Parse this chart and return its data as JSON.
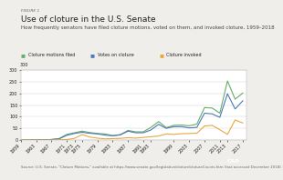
{
  "title": "Use of cloture in the U.S. Senate",
  "figure_label": "FIGURE 1",
  "subtitle": "How frequently senators have filed cloture motions, voted on them, and invoked cloture, 1959–2018",
  "source": "Source: U.S. Senate, \"Cloture Motions,\" available at https://www.senate.gov/legislative/cloture/clotureCounts.htm (last accessed December 2018).",
  "years": [
    1959,
    1961,
    1963,
    1965,
    1967,
    1969,
    1971,
    1973,
    1975,
    1977,
    1979,
    1981,
    1983,
    1985,
    1987,
    1989,
    1991,
    1993,
    1995,
    1997,
    1999,
    2001,
    2003,
    2005,
    2007,
    2009,
    2011,
    2013,
    2015,
    2017
  ],
  "cloture_motions_filed": [
    0,
    0,
    1,
    1,
    2,
    6,
    24,
    31,
    38,
    32,
    28,
    26,
    19,
    23,
    41,
    35,
    35,
    54,
    79,
    53,
    63,
    64,
    61,
    68,
    139,
    137,
    115,
    253,
    175,
    201
  ],
  "votes_on_cloture": [
    0,
    0,
    1,
    1,
    2,
    5,
    20,
    28,
    33,
    29,
    26,
    21,
    18,
    22,
    38,
    31,
    31,
    43,
    67,
    50,
    57,
    57,
    52,
    54,
    115,
    112,
    97,
    198,
    133,
    168
  ],
  "cloture_invoked": [
    0,
    0,
    0,
    0,
    0,
    1,
    2,
    7,
    23,
    13,
    8,
    5,
    6,
    7,
    10,
    8,
    11,
    14,
    17,
    26,
    24,
    27,
    28,
    29,
    60,
    63,
    44,
    24,
    86,
    73
  ],
  "legend": [
    "Cloture motions filed",
    "Votes on cloture",
    "Cloture invoked"
  ],
  "colors": [
    "#6aaa6a",
    "#4a7ab5",
    "#e8a840"
  ],
  "ylim": [
    0,
    300
  ],
  "yticks": [
    0,
    50,
    100,
    150,
    200,
    250,
    300
  ],
  "xtick_years": [
    1959,
    1963,
    1967,
    1971,
    1973,
    1975,
    1979,
    1983,
    1987,
    1991,
    1993,
    1999,
    2003,
    2007,
    2011,
    2013,
    2017
  ],
  "bg_color": "#f0eeea",
  "plot_bg": "#ffffff",
  "line_width": 0.8,
  "font_color": "#222222",
  "title_fontsize": 6.5,
  "subtitle_fontsize": 4.0,
  "tick_fontsize": 3.5,
  "legend_fontsize": 3.5,
  "source_fontsize": 2.8,
  "cap_color": "#003087"
}
